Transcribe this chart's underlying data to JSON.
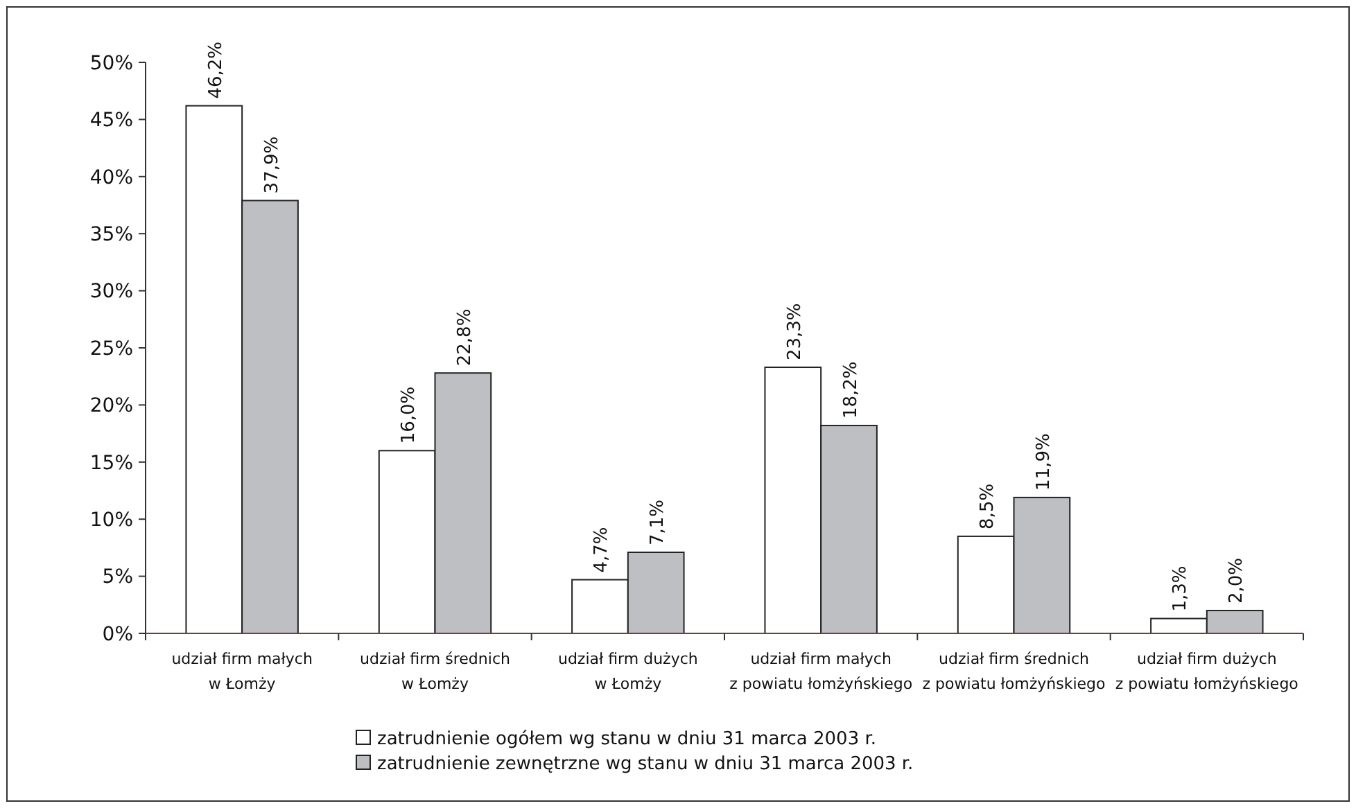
{
  "chart_data": {
    "type": "bar",
    "categories": [
      "udział firm małych\nw Łomży",
      "udział firm średnich\nw Łomży",
      "udział firm dużych\nw Łomży",
      "udział firm małych\nz powiatu łomżyńskiego",
      "udział firm średnich\nz powiatu łomżyńskiego",
      "udział firm dużych\nz powiatu łomżyńskiego"
    ],
    "series": [
      {
        "name": "zatrudnienie ogółem wg stanu w dniu 31 marca 2003 r.",
        "color": "#ffffff",
        "values": [
          46.2,
          16.0,
          4.7,
          23.3,
          8.5,
          1.3
        ],
        "value_labels": [
          "46,2%",
          "16,0%",
          "4,7%",
          "23,3%",
          "8,5%",
          "1,3%"
        ]
      },
      {
        "name": "zatrudnienie zewnętrzne wg stanu w dniu 31 marca 2003 r.",
        "color": "#bebfc3",
        "values": [
          37.9,
          22.8,
          7.1,
          18.2,
          11.9,
          2.0
        ],
        "value_labels": [
          "37,9%",
          "22,8%",
          "7,1%",
          "18,2%",
          "11,9%",
          "2,0%"
        ]
      }
    ],
    "ylim": [
      0,
      50
    ],
    "yticks": [
      {
        "value": 0,
        "label": "0%"
      },
      {
        "value": 5,
        "label": "5%"
      },
      {
        "value": 10,
        "label": "10%"
      },
      {
        "value": 15,
        "label": "15%"
      },
      {
        "value": 20,
        "label": "20%"
      },
      {
        "value": 25,
        "label": "25%"
      },
      {
        "value": 30,
        "label": "30%"
      },
      {
        "value": 35,
        "label": "35%"
      },
      {
        "value": 40,
        "label": "40%"
      },
      {
        "value": 45,
        "label": "45%"
      },
      {
        "value": 50,
        "label": "50%"
      }
    ],
    "grid": false,
    "legend": "bottom"
  }
}
